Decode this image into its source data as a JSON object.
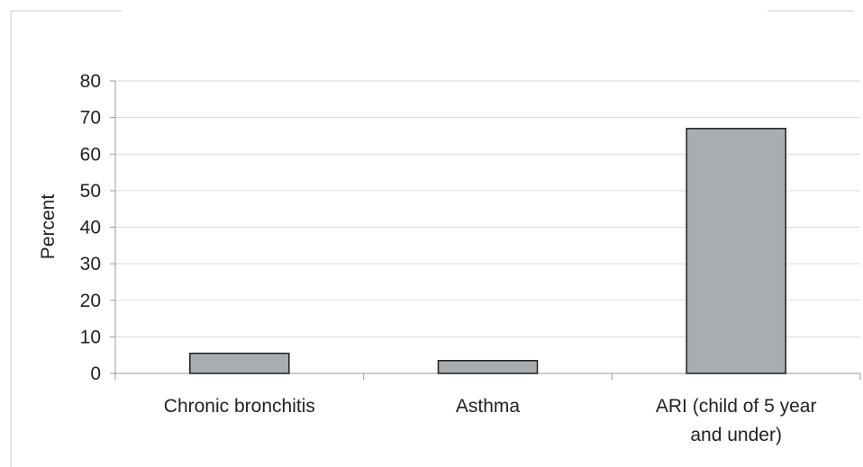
{
  "chart_data": {
    "type": "bar",
    "title": "",
    "xlabel": "",
    "ylabel": "Percent",
    "ylim": [
      0,
      80
    ],
    "yticks": [
      0,
      10,
      20,
      30,
      40,
      50,
      60,
      70,
      80
    ],
    "categories": [
      [
        "Chronic bronchitis"
      ],
      [
        "Asthma"
      ],
      [
        "ARI (child of 5 year",
        "and under)"
      ]
    ],
    "values": [
      5.5,
      3.5,
      67
    ],
    "grid": true,
    "legend": "none",
    "colors": {
      "bar_fill": "#aaadb0",
      "bar_stroke": "#1e1e1e",
      "grid": "#d9d9d9",
      "axis": "#9a9a9a"
    }
  }
}
